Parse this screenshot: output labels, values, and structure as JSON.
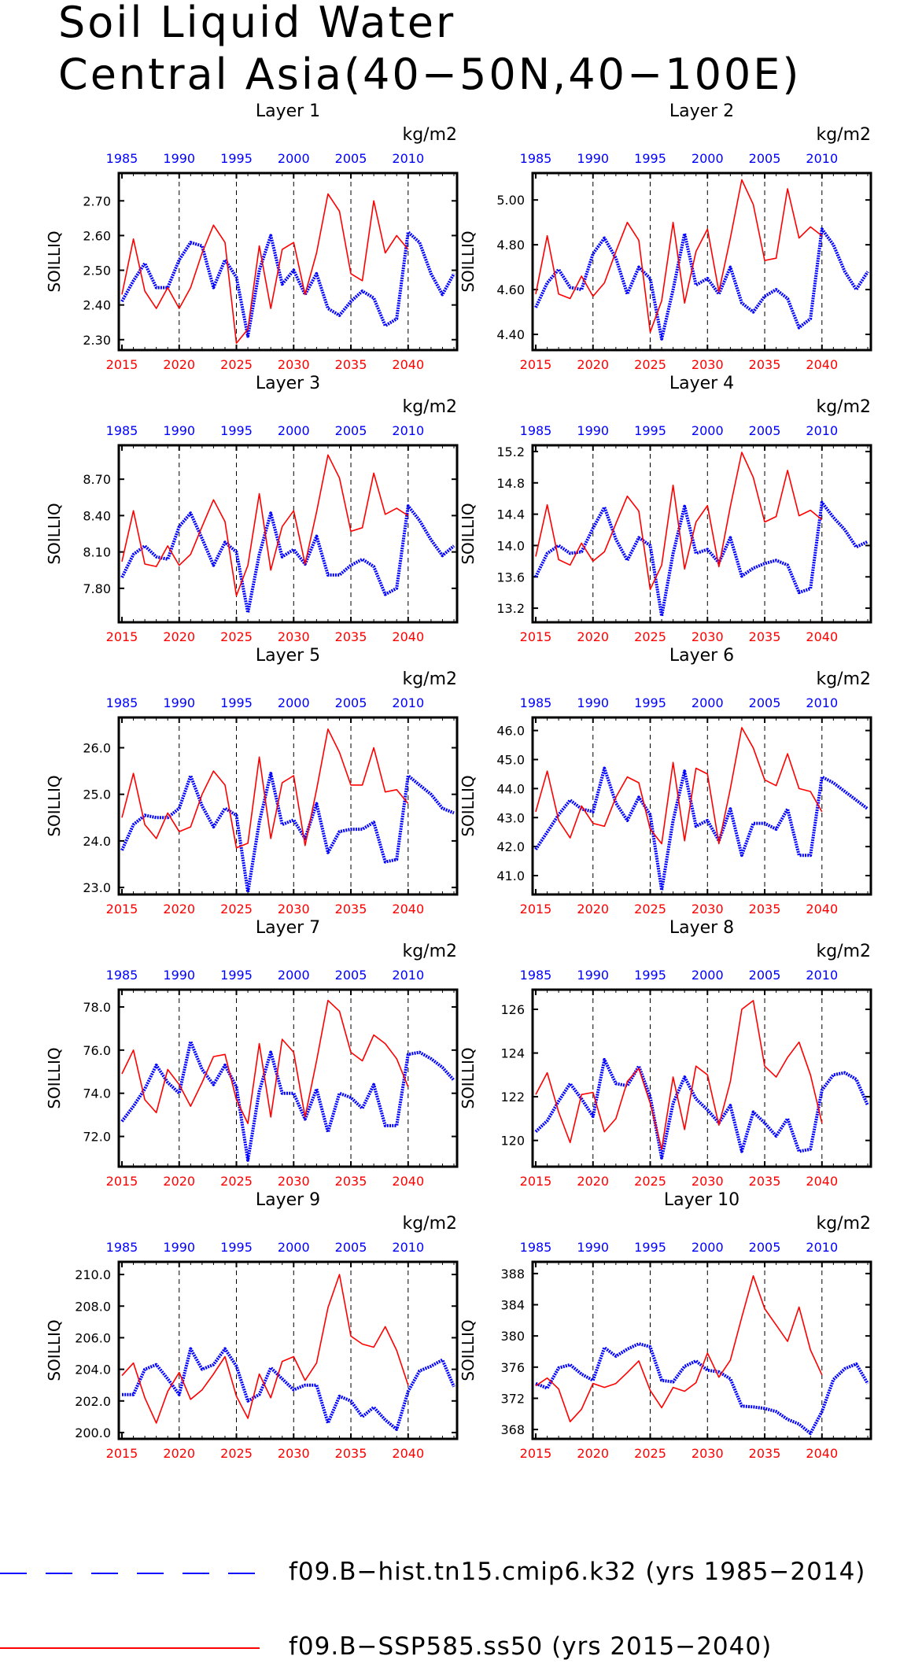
{
  "title_line1": "Soil Liquid Water",
  "title_line2": "Central Asia(40−50N,40−100E)",
  "colors": {
    "hist": "#0000ff",
    "ssp": "#ff0000",
    "axis": "#000000"
  },
  "legend": {
    "hist_label": "f09.B−hist.tn15.cmip6.k32 (yrs 1985−2014)",
    "ssp_label": "f09.B−SSP585.ss50 (yrs 2015−2040)"
  },
  "chart_data": [
    {
      "type": "line",
      "title": "Layer 1",
      "ylabel": "SOILLIQ",
      "units": "kg/m2",
      "ylim": [
        2.27,
        2.78
      ],
      "yticks": [
        "2.30",
        "2.40",
        "2.50",
        "2.60",
        "2.70"
      ],
      "x_top_ticks": [
        "1985",
        "1990",
        "1995",
        "2000",
        "2005",
        "2010"
      ],
      "x_bottom_ticks": [
        "2015",
        "2020",
        "2025",
        "2030",
        "2035",
        "2040"
      ],
      "series": [
        {
          "x_start": 1985,
          "values": [
            2.41,
            2.47,
            2.52,
            2.45,
            2.45,
            2.53,
            2.58,
            2.57,
            2.45,
            2.53,
            2.48,
            2.31,
            2.5,
            2.6,
            2.46,
            2.5,
            2.43,
            2.49,
            2.39,
            2.37,
            2.41,
            2.44,
            2.42,
            2.34,
            2.36,
            2.61,
            2.58,
            2.49,
            2.43,
            2.49
          ]
        },
        {
          "x_start": 2015,
          "values": [
            2.43,
            2.59,
            2.44,
            2.39,
            2.45,
            2.39,
            2.45,
            2.55,
            2.63,
            2.58,
            2.29,
            2.33,
            2.57,
            2.39,
            2.56,
            2.58,
            2.43,
            2.55,
            2.72,
            2.67,
            2.49,
            2.47,
            2.7,
            2.55,
            2.6,
            2.56
          ]
        }
      ]
    },
    {
      "type": "line",
      "title": "Layer 2",
      "ylabel": "SOILLIQ",
      "units": "kg/m2",
      "ylim": [
        4.33,
        5.12
      ],
      "yticks": [
        "4.40",
        "4.60",
        "4.80",
        "5.00"
      ],
      "x_top_ticks": [
        "1985",
        "1990",
        "1995",
        "2000",
        "2005",
        "2010"
      ],
      "x_bottom_ticks": [
        "2015",
        "2020",
        "2025",
        "2030",
        "2035",
        "2040"
      ],
      "series": [
        {
          "x_start": 1985,
          "values": [
            4.52,
            4.63,
            4.69,
            4.61,
            4.6,
            4.76,
            4.83,
            4.74,
            4.58,
            4.7,
            4.65,
            4.38,
            4.6,
            4.85,
            4.62,
            4.65,
            4.58,
            4.7,
            4.54,
            4.5,
            4.57,
            4.6,
            4.56,
            4.43,
            4.47,
            4.87,
            4.8,
            4.68,
            4.6,
            4.68
          ]
        },
        {
          "x_start": 2015,
          "values": [
            4.58,
            4.84,
            4.58,
            4.56,
            4.66,
            4.57,
            4.63,
            4.77,
            4.9,
            4.82,
            4.41,
            4.55,
            4.9,
            4.54,
            4.77,
            4.87,
            4.59,
            4.83,
            5.09,
            4.98,
            4.73,
            4.74,
            5.05,
            4.83,
            4.88,
            4.84
          ]
        }
      ]
    },
    {
      "type": "line",
      "title": "Layer 3",
      "ylabel": "SOILLIQ",
      "units": "kg/m2",
      "ylim": [
        7.52,
        8.98
      ],
      "yticks": [
        "7.80",
        "8.10",
        "8.40",
        "8.70"
      ],
      "x_top_ticks": [
        "1985",
        "1990",
        "1995",
        "2000",
        "2005",
        "2010"
      ],
      "x_bottom_ticks": [
        "2015",
        "2020",
        "2025",
        "2030",
        "2035",
        "2040"
      ],
      "series": [
        {
          "x_start": 1985,
          "values": [
            7.89,
            8.08,
            8.15,
            8.06,
            8.04,
            8.31,
            8.42,
            8.21,
            7.99,
            8.18,
            8.1,
            7.6,
            8.08,
            8.42,
            8.06,
            8.12,
            8.0,
            8.23,
            7.91,
            7.91,
            7.99,
            8.04,
            7.98,
            7.75,
            7.8,
            8.48,
            8.36,
            8.2,
            8.07,
            8.15
          ]
        },
        {
          "x_start": 2015,
          "values": [
            8.02,
            8.44,
            8.0,
            7.98,
            8.15,
            7.99,
            8.08,
            8.31,
            8.53,
            8.35,
            7.74,
            7.99,
            8.58,
            7.95,
            8.31,
            8.44,
            8.0,
            8.43,
            8.9,
            8.71,
            8.27,
            8.3,
            8.75,
            8.41,
            8.46,
            8.4
          ]
        }
      ]
    },
    {
      "type": "line",
      "title": "Layer 4",
      "ylabel": "SOILLIQ",
      "units": "kg/m2",
      "ylim": [
        13.02,
        15.28
      ],
      "yticks": [
        "13.2",
        "13.6",
        "14.0",
        "14.4",
        "14.8",
        "15.2"
      ],
      "x_top_ticks": [
        "1985",
        "1990",
        "1995",
        "2000",
        "2005",
        "2010"
      ],
      "x_bottom_ticks": [
        "2015",
        "2020",
        "2025",
        "2030",
        "2035",
        "2040"
      ],
      "series": [
        {
          "x_start": 1985,
          "values": [
            13.6,
            13.9,
            14.0,
            13.9,
            13.92,
            14.22,
            14.49,
            14.08,
            13.81,
            14.1,
            14.0,
            13.1,
            13.9,
            14.5,
            13.9,
            13.95,
            13.78,
            14.1,
            13.61,
            13.71,
            13.77,
            13.81,
            13.75,
            13.4,
            13.45,
            14.55,
            14.36,
            14.2,
            13.98,
            14.05
          ]
        },
        {
          "x_start": 2015,
          "values": [
            13.86,
            14.52,
            13.82,
            13.75,
            14.03,
            13.8,
            13.92,
            14.28,
            14.63,
            14.44,
            13.44,
            13.75,
            14.77,
            13.7,
            14.3,
            14.51,
            13.73,
            14.5,
            15.19,
            14.87,
            14.3,
            14.37,
            14.96,
            14.38,
            14.45,
            14.33
          ]
        }
      ]
    },
    {
      "type": "line",
      "title": "Layer 5",
      "ylabel": "SOILLIQ",
      "units": "kg/m2",
      "ylim": [
        22.85,
        26.65
      ],
      "yticks": [
        "23.0",
        "24.0",
        "25.0",
        "26.0"
      ],
      "x_top_ticks": [
        "1985",
        "1990",
        "1995",
        "2000",
        "2005",
        "2010"
      ],
      "x_bottom_ticks": [
        "2015",
        "2020",
        "2025",
        "2030",
        "2035",
        "2040"
      ],
      "series": [
        {
          "x_start": 1985,
          "values": [
            23.8,
            24.35,
            24.55,
            24.5,
            24.5,
            24.7,
            25.4,
            24.75,
            24.3,
            24.7,
            24.55,
            22.9,
            24.4,
            25.45,
            24.35,
            24.45,
            24.05,
            24.8,
            23.75,
            24.2,
            24.25,
            24.25,
            24.4,
            23.55,
            23.6,
            25.4,
            25.2,
            25.0,
            24.7,
            24.6
          ]
        },
        {
          "x_start": 2015,
          "values": [
            24.5,
            25.45,
            24.35,
            24.05,
            24.6,
            24.2,
            24.3,
            25.0,
            25.5,
            25.2,
            23.85,
            23.95,
            25.8,
            24.05,
            25.25,
            25.4,
            23.9,
            25.1,
            26.4,
            25.9,
            25.2,
            25.2,
            26.0,
            25.05,
            25.1,
            24.8
          ]
        }
      ]
    },
    {
      "type": "line",
      "title": "Layer 6",
      "ylabel": "SOILLIQ",
      "units": "kg/m2",
      "ylim": [
        40.35,
        46.45
      ],
      "yticks": [
        "41.0",
        "42.0",
        "43.0",
        "44.0",
        "45.0",
        "46.0"
      ],
      "x_top_ticks": [
        "1985",
        "1990",
        "1995",
        "2000",
        "2005",
        "2010"
      ],
      "x_bottom_ticks": [
        "2015",
        "2020",
        "2025",
        "2030",
        "2035",
        "2040"
      ],
      "series": [
        {
          "x_start": 1985,
          "values": [
            41.9,
            42.5,
            43.1,
            43.6,
            43.3,
            43.2,
            44.7,
            43.5,
            42.9,
            43.7,
            43.1,
            40.5,
            42.9,
            44.6,
            42.7,
            42.9,
            42.2,
            43.3,
            41.7,
            42.8,
            42.8,
            42.6,
            43.3,
            41.7,
            41.7,
            44.4,
            44.2,
            43.9,
            43.6,
            43.3
          ]
        },
        {
          "x_start": 2015,
          "values": [
            43.2,
            44.6,
            42.9,
            42.3,
            43.4,
            42.8,
            42.7,
            43.7,
            44.4,
            44.2,
            42.6,
            42.1,
            44.9,
            42.2,
            44.7,
            44.5,
            42.1,
            44.0,
            46.1,
            45.4,
            44.3,
            44.1,
            45.2,
            44.0,
            43.9,
            43.2
          ]
        }
      ]
    },
    {
      "type": "line",
      "title": "Layer 7",
      "ylabel": "SOILLIQ",
      "units": "kg/m2",
      "ylim": [
        70.6,
        78.8
      ],
      "yticks": [
        "72.0",
        "74.0",
        "76.0",
        "78.0"
      ],
      "x_top_ticks": [
        "1985",
        "1990",
        "1995",
        "2000",
        "2005",
        "2010"
      ],
      "x_bottom_ticks": [
        "2015",
        "2020",
        "2025",
        "2030",
        "2035",
        "2040"
      ],
      "series": [
        {
          "x_start": 1985,
          "values": [
            72.7,
            73.4,
            74.2,
            75.3,
            74.5,
            74.0,
            76.4,
            75.1,
            74.4,
            75.3,
            74.3,
            70.9,
            74.1,
            75.9,
            74.0,
            74.0,
            72.8,
            74.2,
            72.2,
            74.0,
            73.8,
            73.3,
            74.4,
            72.5,
            72.5,
            75.8,
            75.9,
            75.6,
            75.2,
            74.6
          ]
        },
        {
          "x_start": 2015,
          "values": [
            74.9,
            76.0,
            73.7,
            73.1,
            75.1,
            74.4,
            73.4,
            74.5,
            75.7,
            75.8,
            73.7,
            72.6,
            76.3,
            72.9,
            76.5,
            75.9,
            72.9,
            75.5,
            78.3,
            77.8,
            75.9,
            75.5,
            76.7,
            76.3,
            75.6,
            74.3
          ]
        }
      ]
    },
    {
      "type": "line",
      "title": "Layer 8",
      "ylabel": "SOILLIQ",
      "units": "kg/m2",
      "ylim": [
        118.8,
        126.9
      ],
      "yticks": [
        "120",
        "122",
        "124",
        "126"
      ],
      "x_top_ticks": [
        "1985",
        "1990",
        "1995",
        "2000",
        "2005",
        "2010"
      ],
      "x_bottom_ticks": [
        "2015",
        "2020",
        "2025",
        "2030",
        "2035",
        "2040"
      ],
      "series": [
        {
          "x_start": 1985,
          "values": [
            120.4,
            120.9,
            121.8,
            122.6,
            121.9,
            121.1,
            123.7,
            122.6,
            122.5,
            123.4,
            122.0,
            119.2,
            121.7,
            122.9,
            121.9,
            121.4,
            120.8,
            121.6,
            119.5,
            121.3,
            120.8,
            120.2,
            121.0,
            119.5,
            119.6,
            122.3,
            123.0,
            123.1,
            122.8,
            121.6
          ]
        },
        {
          "x_start": 2015,
          "values": [
            122.1,
            123.1,
            121.3,
            119.9,
            122.1,
            122.2,
            120.4,
            121.0,
            122.7,
            123.3,
            121.7,
            119.6,
            122.9,
            120.5,
            123.4,
            123.0,
            120.7,
            122.7,
            126.0,
            126.4,
            123.4,
            122.9,
            123.8,
            124.5,
            123.0,
            120.8
          ]
        }
      ]
    },
    {
      "type": "line",
      "title": "Layer 9",
      "ylabel": "SOILLIQ",
      "units": "kg/m2",
      "ylim": [
        199.6,
        210.8
      ],
      "yticks": [
        "200.0",
        "202.0",
        "204.0",
        "206.0",
        "208.0",
        "210.0"
      ],
      "x_top_ticks": [
        "1985",
        "1990",
        "1995",
        "2000",
        "2005",
        "2010"
      ],
      "x_bottom_ticks": [
        "2015",
        "2020",
        "2025",
        "2030",
        "2035",
        "2040"
      ],
      "series": [
        {
          "x_start": 1985,
          "values": [
            202.4,
            202.4,
            204.0,
            204.3,
            203.4,
            202.4,
            205.3,
            204.0,
            204.3,
            205.3,
            204.2,
            202.0,
            202.4,
            204.1,
            203.4,
            202.7,
            203.0,
            203.0,
            200.6,
            202.3,
            202.0,
            201.0,
            201.6,
            200.8,
            200.2,
            202.6,
            203.9,
            204.2,
            204.6,
            202.9
          ]
        },
        {
          "x_start": 2015,
          "values": [
            203.6,
            204.4,
            202.2,
            200.6,
            202.6,
            203.8,
            202.1,
            202.7,
            203.7,
            204.8,
            202.3,
            200.9,
            203.7,
            202.2,
            204.5,
            204.8,
            203.3,
            204.4,
            207.9,
            210.0,
            206.1,
            205.6,
            205.4,
            206.7,
            205.2,
            203.0
          ]
        }
      ]
    },
    {
      "type": "line",
      "title": "Layer 10",
      "ylabel": "SOILLIQ",
      "units": "kg/m2",
      "ylim": [
        366.8,
        389.5
      ],
      "yticks": [
        "368",
        "372",
        "376",
        "380",
        "384",
        "388"
      ],
      "x_top_ticks": [
        "1985",
        "1990",
        "1995",
        "2000",
        "2005",
        "2010"
      ],
      "x_bottom_ticks": [
        "2015",
        "2020",
        "2025",
        "2030",
        "2035",
        "2040"
      ],
      "series": [
        {
          "x_start": 1985,
          "values": [
            373.9,
            373.3,
            375.9,
            376.3,
            375.1,
            374.3,
            378.5,
            377.4,
            378.3,
            379.0,
            378.6,
            374.3,
            374.1,
            376.1,
            376.8,
            375.6,
            375.4,
            374.5,
            371.0,
            370.9,
            370.7,
            370.3,
            369.3,
            368.7,
            367.5,
            370.3,
            374.4,
            375.8,
            376.4,
            373.9
          ]
        },
        {
          "x_start": 2015,
          "values": [
            373.6,
            374.6,
            373.2,
            369.0,
            370.6,
            373.9,
            373.4,
            373.9,
            375.3,
            376.8,
            373.0,
            370.8,
            373.4,
            372.9,
            374.0,
            377.8,
            374.7,
            376.9,
            382.4,
            387.7,
            383.5,
            381.4,
            379.3,
            383.7,
            378.2,
            375.0
          ]
        }
      ]
    }
  ]
}
